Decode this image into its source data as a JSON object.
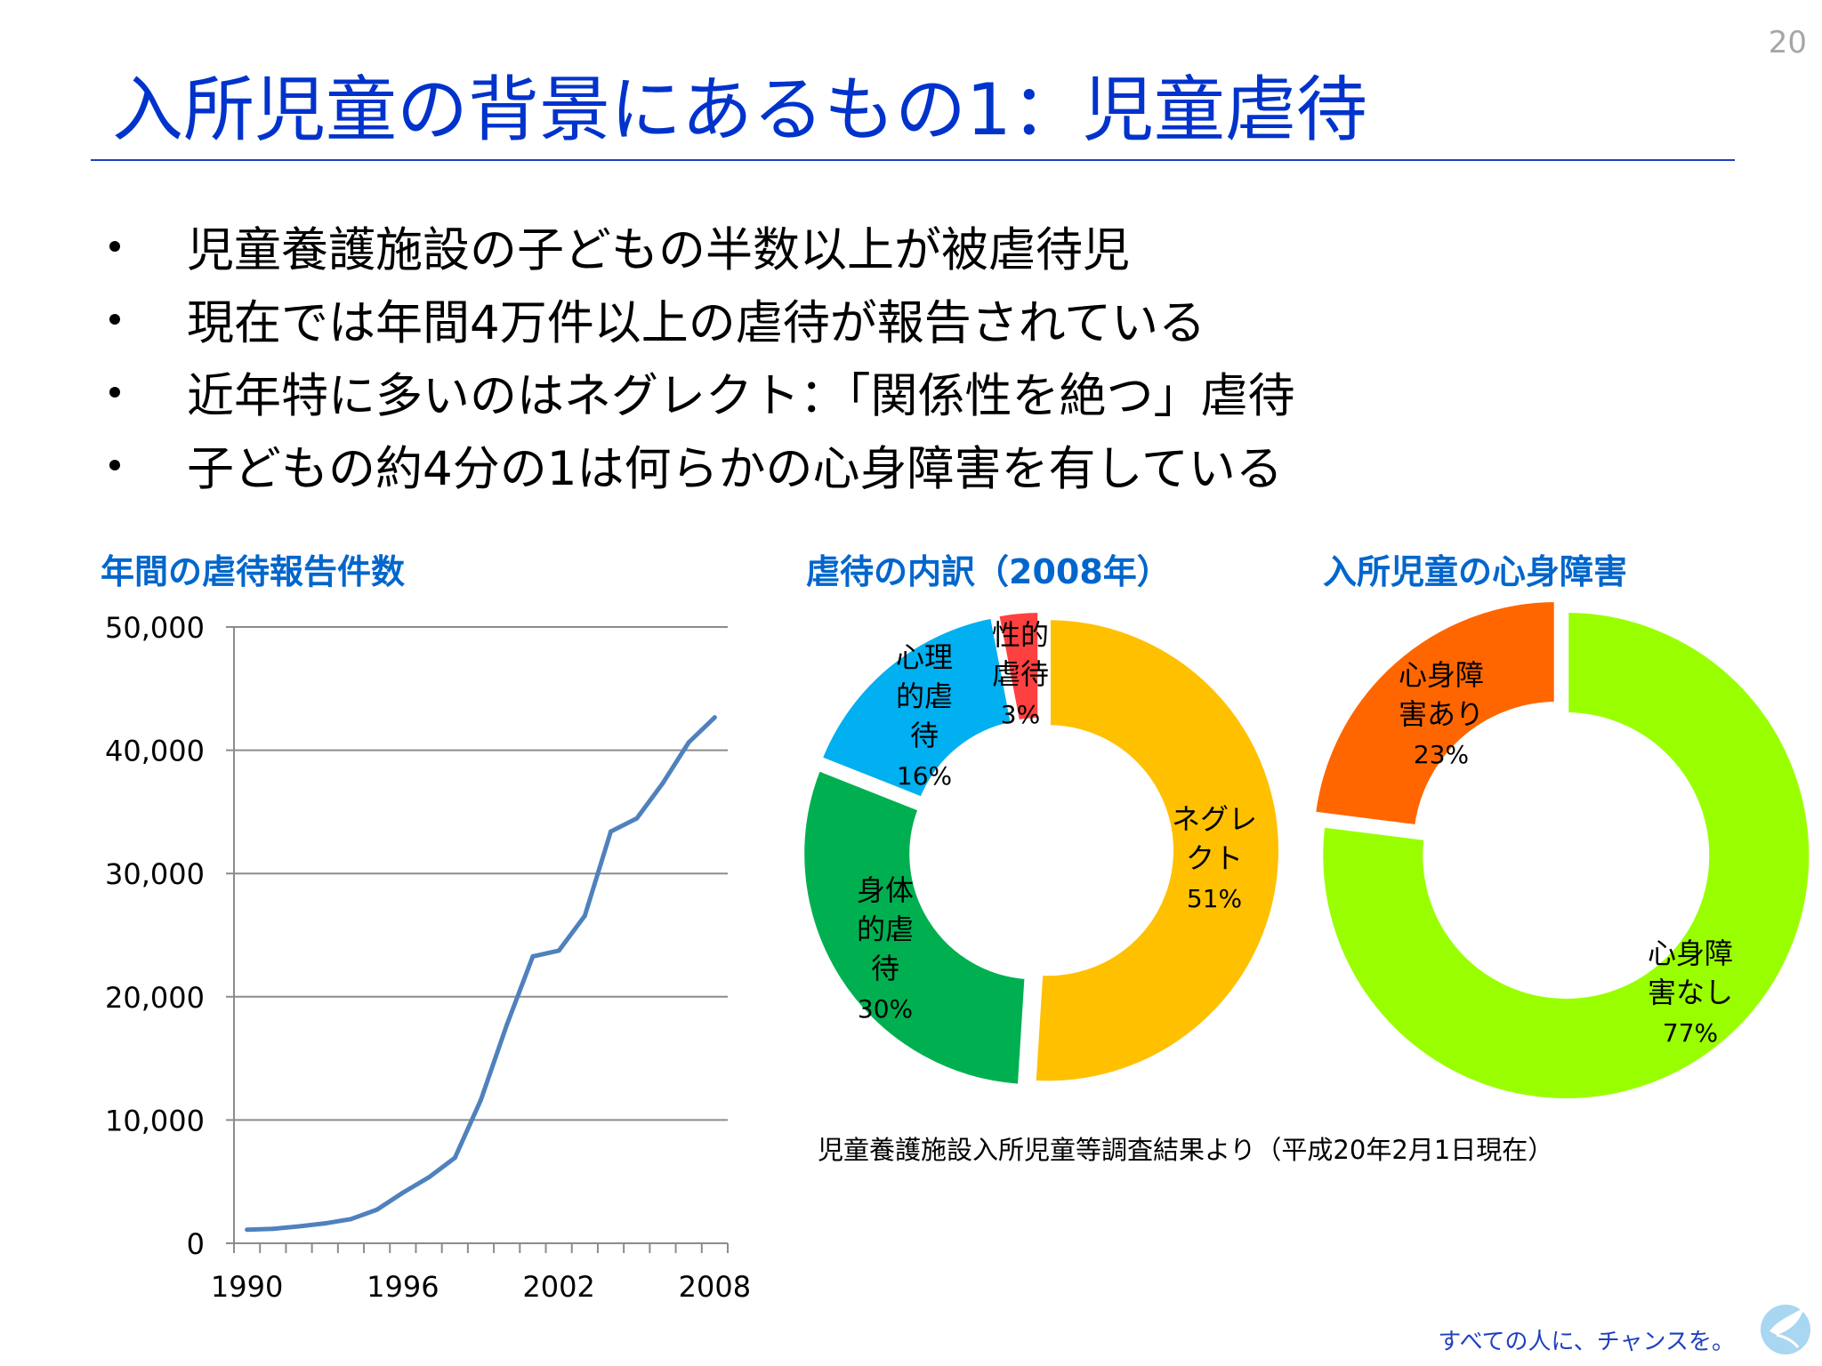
{
  "page_number": "20",
  "title": "入所児童の背景にあるもの1：児童虐待",
  "bullets": [
    "児童養護施設の子どもの半数以上が被虐待児",
    "現在では年間4万件以上の虐待が報告されている",
    "近年特に多いのはネグレクト：「関係性を絶つ」虐待",
    "子どもの約4分の1は何らかの心身障害を有している"
  ],
  "source_note": "児童養護施設入所児童等調査結果より（平成20年2月1日現在）",
  "footer": {
    "slogan": "すべての人に、チャンスを。",
    "logo_icon": "dove-logo-icon"
  },
  "colors": {
    "title": "#0033cc",
    "chart_title": "#0066cc",
    "line": "#4f81bd",
    "neglect": "#ffc000",
    "physical": "#00b050",
    "psychological": "#00b0f0",
    "sexual": "#ff4040",
    "disability_yes": "#ff6600",
    "disability_no": "#99ff00"
  },
  "chart_data": [
    {
      "type": "line",
      "title": "年間の虐待報告件数",
      "x": [
        1990,
        1991,
        1992,
        1993,
        1994,
        1995,
        1996,
        1997,
        1998,
        1999,
        2000,
        2001,
        2002,
        2003,
        2004,
        2005,
        2006,
        2007,
        2008
      ],
      "x_tick_labels": [
        "1990",
        "1996",
        "2002",
        "2008"
      ],
      "y_tick_labels": [
        "0",
        "10,000",
        "20,000",
        "30,000",
        "40,000",
        "50,000"
      ],
      "series": [
        {
          "values": [
            1101,
            1171,
            1372,
            1611,
            1961,
            2722,
            4102,
            5352,
            6932,
            11631,
            17725,
            23274,
            23738,
            26569,
            33408,
            34472,
            37323,
            40639,
            42664
          ]
        }
      ],
      "xlim": [
        1990,
        2008
      ],
      "ylim": [
        0,
        50000
      ],
      "grid": true
    },
    {
      "type": "pie",
      "title": "虐待の内訳（2008年）",
      "style": "donut",
      "slices": [
        {
          "label": "ネグレクト",
          "value": 51,
          "value_label": "51%",
          "color_key": "neglect"
        },
        {
          "label": "身体的虐待",
          "value": 30,
          "value_label": "30%",
          "color_key": "physical"
        },
        {
          "label": "心理的虐待",
          "value": 16,
          "value_label": "16%",
          "color_key": "psychological"
        },
        {
          "label": "性的虐待",
          "value": 3,
          "value_label": "3%",
          "color_key": "sexual"
        }
      ]
    },
    {
      "type": "pie",
      "title": "入所児童の心身障害",
      "style": "donut",
      "slices": [
        {
          "label": "心身障害なし",
          "value": 77,
          "value_label": "77%",
          "color_key": "disability_no"
        },
        {
          "label": "心身障害あり",
          "value": 23,
          "value_label": "23%",
          "color_key": "disability_yes"
        }
      ]
    }
  ]
}
